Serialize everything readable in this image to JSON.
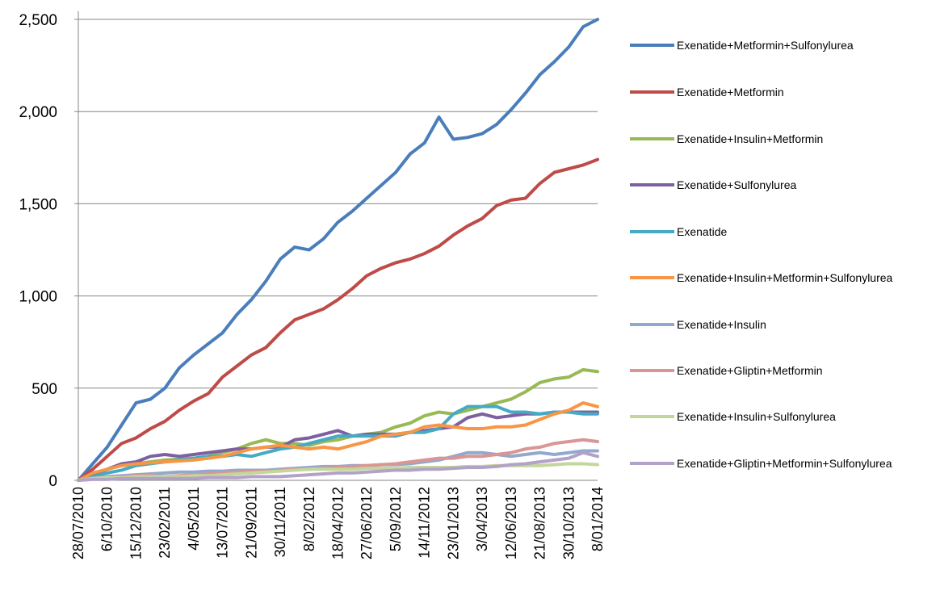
{
  "chart_data": {
    "type": "line",
    "categories": [
      "28/07/2010",
      null,
      "6/10/2010",
      null,
      "15/12/2010",
      null,
      "23/02/2011",
      null,
      "4/05/2011",
      null,
      "13/07/2011",
      null,
      "21/09/2011",
      null,
      "30/11/2011",
      null,
      "8/02/2012",
      null,
      "18/04/2012",
      null,
      "27/06/2012",
      null,
      "5/09/2012",
      null,
      "14/11/2012",
      null,
      "23/01/2013",
      null,
      "3/04/2013",
      null,
      "12/06/2013",
      null,
      "21/08/2013",
      null,
      "30/10/2013",
      null,
      "8/01/2014"
    ],
    "ylim": [
      0,
      2500
    ],
    "yticks": [
      0,
      500,
      {
        "value": 1000,
        "label": "1,000"
      },
      {
        "value": 1500,
        "label": "1,500"
      },
      {
        "value": 2000,
        "label": "2,000"
      },
      {
        "value": 2500,
        "label": "2,500"
      }
    ],
    "grid": true,
    "legend": "right",
    "series": [
      {
        "name": "Exenatide+Metformin+Sulfonylurea",
        "color": "#4a7ebb",
        "values": [
          0,
          90,
          180,
          300,
          420,
          440,
          500,
          610,
          680,
          740,
          800,
          900,
          980,
          1080,
          1200,
          1265,
          1250,
          1310,
          1400,
          1460,
          1530,
          1600,
          1670,
          1770,
          1830,
          1970,
          1850,
          1860,
          1880,
          1930,
          2010,
          2100,
          2200,
          2270,
          2350,
          2460,
          2500
        ]
      },
      {
        "name": "Exenatide+Metformin",
        "color": "#be4b48",
        "values": [
          0,
          60,
          130,
          200,
          230,
          280,
          320,
          380,
          430,
          470,
          560,
          620,
          680,
          720,
          800,
          870,
          900,
          930,
          980,
          1040,
          1110,
          1150,
          1180,
          1200,
          1230,
          1270,
          1330,
          1380,
          1420,
          1490,
          1520,
          1530,
          1610,
          1670,
          1690,
          1710,
          1740
        ]
      },
      {
        "name": "Exenatide+Insulin+Metformin",
        "color": "#98b954",
        "values": [
          0,
          30,
          60,
          80,
          90,
          100,
          110,
          115,
          120,
          130,
          150,
          170,
          200,
          220,
          200,
          200,
          190,
          210,
          220,
          240,
          250,
          260,
          290,
          310,
          350,
          370,
          360,
          380,
          400,
          420,
          440,
          480,
          530,
          550,
          560,
          600,
          590
        ]
      },
      {
        "name": "Exenatide+Sulfonylurea",
        "color": "#7d60a0",
        "values": [
          0,
          30,
          60,
          90,
          100,
          130,
          140,
          130,
          140,
          150,
          160,
          170,
          170,
          180,
          180,
          220,
          230,
          250,
          270,
          240,
          250,
          250,
          250,
          260,
          270,
          280,
          290,
          340,
          360,
          340,
          350,
          360,
          360,
          370,
          370,
          370,
          370
        ]
      },
      {
        "name": "Exenatide",
        "color": "#46aac5",
        "values": [
          0,
          20,
          40,
          55,
          80,
          90,
          100,
          110,
          120,
          130,
          130,
          140,
          130,
          150,
          170,
          180,
          200,
          220,
          240,
          240,
          240,
          240,
          240,
          260,
          260,
          280,
          360,
          400,
          400,
          400,
          370,
          370,
          360,
          370,
          370,
          360,
          360
        ]
      },
      {
        "name": "Exenatide+Insulin+Metformin+Sulfonylurea",
        "color": "#f79646",
        "values": [
          0,
          40,
          60,
          80,
          90,
          95,
          100,
          105,
          110,
          120,
          130,
          150,
          170,
          180,
          190,
          180,
          170,
          180,
          170,
          190,
          210,
          240,
          250,
          260,
          290,
          300,
          290,
          280,
          280,
          290,
          290,
          300,
          330,
          360,
          380,
          420,
          400
        ]
      },
      {
        "name": "Exenatide+Insulin",
        "color": "#92a9cf",
        "values": [
          0,
          10,
          20,
          25,
          30,
          35,
          40,
          45,
          45,
          50,
          50,
          55,
          55,
          55,
          60,
          65,
          70,
          75,
          75,
          80,
          80,
          85,
          85,
          90,
          100,
          110,
          130,
          150,
          150,
          140,
          130,
          140,
          150,
          140,
          150,
          160,
          160
        ]
      },
      {
        "name": "Exenatide+Gliptin+Metformin",
        "color": "#d99694",
        "values": [
          0,
          10,
          15,
          20,
          25,
          25,
          20,
          25,
          30,
          35,
          40,
          45,
          50,
          50,
          55,
          60,
          60,
          65,
          70,
          75,
          80,
          85,
          90,
          100,
          110,
          120,
          120,
          130,
          130,
          140,
          150,
          170,
          180,
          200,
          210,
          220,
          210
        ]
      },
      {
        "name": "Exenatide+Insulin+Sulfonylurea",
        "color": "#c3d69b",
        "values": [
          0,
          10,
          15,
          15,
          20,
          20,
          20,
          20,
          25,
          25,
          30,
          35,
          40,
          45,
          50,
          55,
          60,
          60,
          60,
          60,
          65,
          65,
          65,
          70,
          70,
          70,
          70,
          75,
          75,
          80,
          80,
          80,
          80,
          85,
          90,
          90,
          85
        ]
      },
      {
        "name": "Exenatide+Gliptin+Metformin+Sulfonylurea",
        "color": "#b3a2c7",
        "values": [
          0,
          5,
          5,
          10,
          10,
          10,
          10,
          10,
          10,
          15,
          15,
          15,
          20,
          20,
          20,
          25,
          30,
          35,
          40,
          40,
          45,
          50,
          55,
          55,
          60,
          60,
          65,
          70,
          70,
          75,
          85,
          90,
          100,
          110,
          120,
          150,
          130
        ]
      }
    ]
  }
}
